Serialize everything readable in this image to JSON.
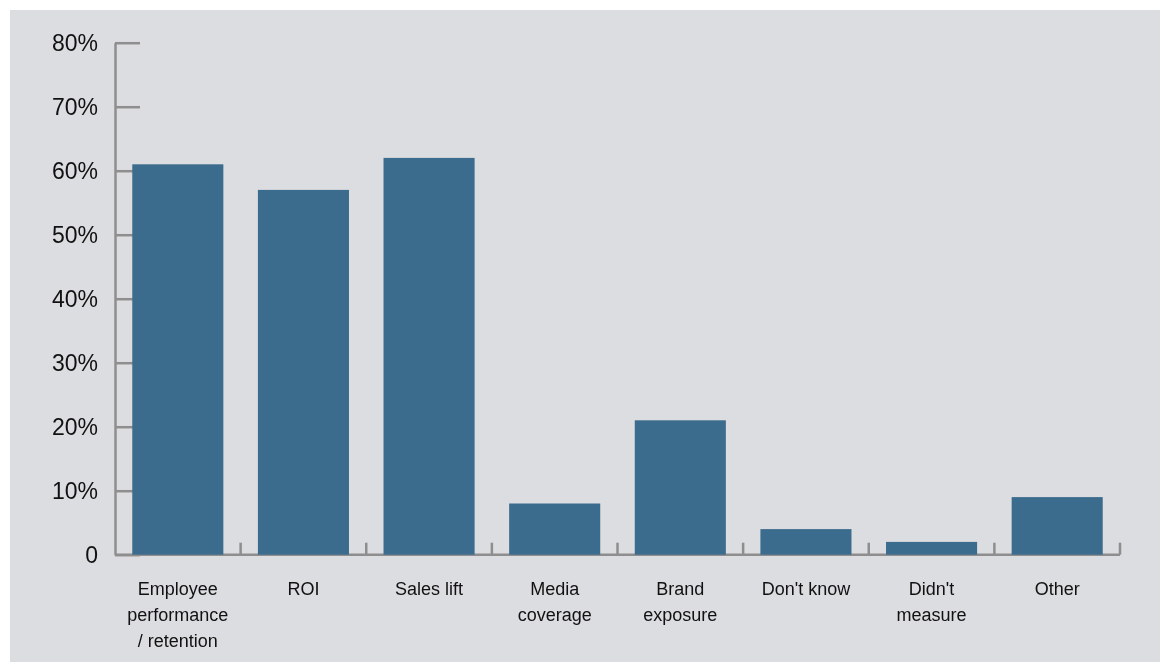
{
  "chart_data": {
    "type": "bar",
    "categories": [
      "Employee performance / retention",
      "ROI",
      "Sales lift",
      "Media coverage",
      "Brand exposure",
      "Don't know",
      "Didn't measure",
      "Other"
    ],
    "values": [
      61,
      57,
      62,
      8,
      21,
      4,
      2,
      9
    ],
    "color": "#3b6c8d",
    "ylim": [
      0,
      80
    ],
    "yticks": [
      0,
      {
        "value": 10,
        "label": "10%"
      },
      {
        "value": 20,
        "label": "20%"
      },
      {
        "value": 30,
        "label": "30%"
      },
      {
        "value": 40,
        "label": "40%"
      },
      {
        "value": 50,
        "label": "50%"
      },
      {
        "value": 60,
        "label": "60%"
      },
      {
        "value": 70,
        "label": "70%"
      },
      {
        "value": 80,
        "label": "80%"
      }
    ]
  }
}
